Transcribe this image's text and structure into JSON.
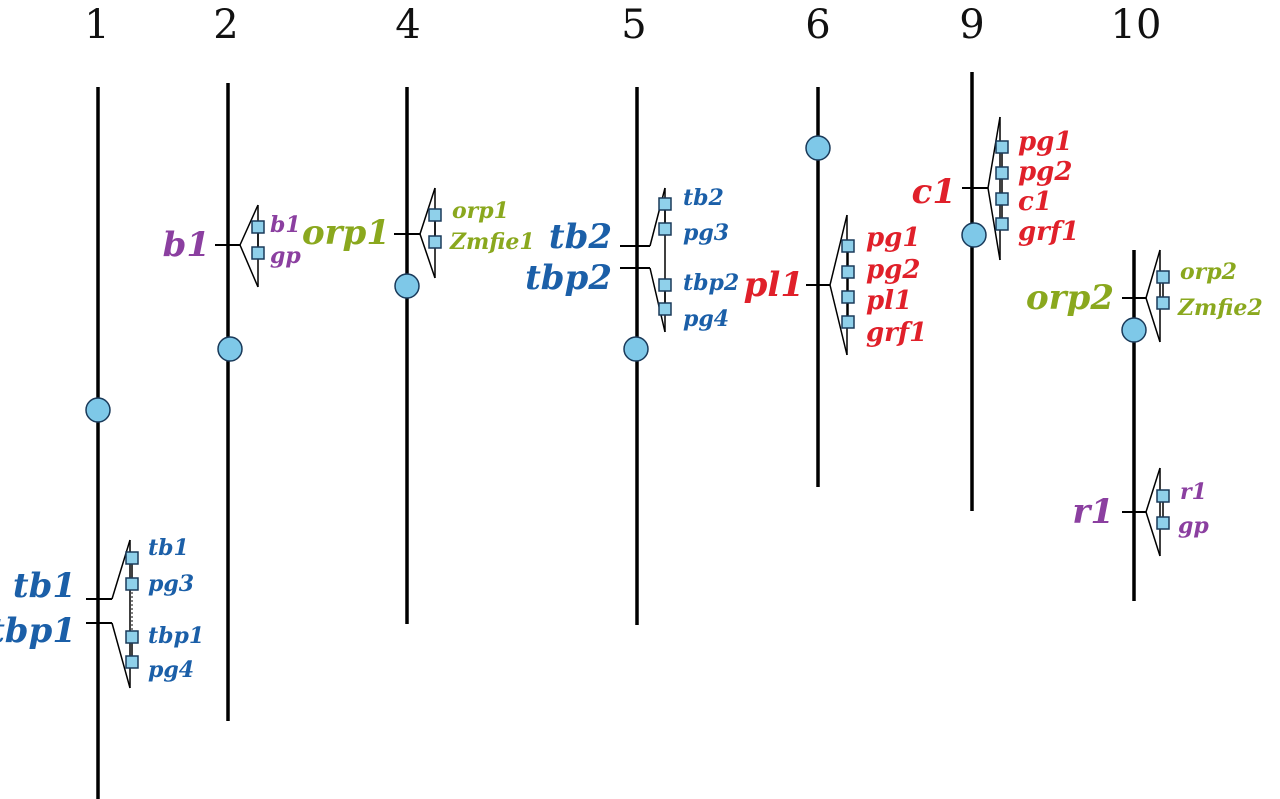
{
  "colors": {
    "blue": "#1b5fa8",
    "purple": "#8b3fa0",
    "olive": "#8aa81e",
    "red": "#e0202a",
    "centromere": "#7ec8e8",
    "marker": "#8fd0ea",
    "line": "#000000"
  },
  "chromosomes": [
    {
      "number": "1",
      "loci": [
        {
          "label": "tb1",
          "color": "blue"
        },
        {
          "label": "tbp1",
          "color": "blue"
        }
      ],
      "genes": [
        {
          "label": "tb1",
          "color": "blue"
        },
        {
          "label": "pg3",
          "color": "blue"
        },
        {
          "label": "tbp1",
          "color": "blue"
        },
        {
          "label": "pg4",
          "color": "blue"
        }
      ]
    },
    {
      "number": "2",
      "loci": [
        {
          "label": "b1",
          "color": "purple"
        }
      ],
      "genes": [
        {
          "label": "b1",
          "color": "purple"
        },
        {
          "label": "gp",
          "color": "purple"
        }
      ]
    },
    {
      "number": "4",
      "loci": [
        {
          "label": "orp1",
          "color": "olive"
        }
      ],
      "genes": [
        {
          "label": "orp1",
          "color": "olive"
        },
        {
          "label": "Zmfie1",
          "color": "olive"
        }
      ]
    },
    {
      "number": "5",
      "loci": [
        {
          "label": "tb2",
          "color": "blue"
        },
        {
          "label": "tbp2",
          "color": "blue"
        }
      ],
      "genes": [
        {
          "label": "tb2",
          "color": "blue"
        },
        {
          "label": "pg3",
          "color": "blue"
        },
        {
          "label": "tbp2",
          "color": "blue"
        },
        {
          "label": "pg4",
          "color": "blue"
        }
      ]
    },
    {
      "number": "6",
      "loci": [
        {
          "label": "pl1",
          "color": "red"
        }
      ],
      "genes": [
        {
          "label": "pg1",
          "color": "red"
        },
        {
          "label": "pg2",
          "color": "red"
        },
        {
          "label": "pl1",
          "color": "red"
        },
        {
          "label": "grf1",
          "color": "red"
        }
      ]
    },
    {
      "number": "9",
      "loci": [
        {
          "label": "c1",
          "color": "red"
        }
      ],
      "genes": [
        {
          "label": "pg1",
          "color": "red"
        },
        {
          "label": "pg2",
          "color": "red"
        },
        {
          "label": "c1",
          "color": "red"
        },
        {
          "label": "grf1",
          "color": "red"
        }
      ]
    },
    {
      "number": "10",
      "loci": [
        {
          "label": "orp2",
          "color": "olive"
        },
        {
          "label": "r1",
          "color": "purple"
        }
      ],
      "genes": [
        {
          "label": "orp2",
          "color": "olive"
        },
        {
          "label": "Zmfie2",
          "color": "olive"
        },
        {
          "label": "r1",
          "color": "purple"
        },
        {
          "label": "gp",
          "color": "purple"
        }
      ]
    }
  ]
}
